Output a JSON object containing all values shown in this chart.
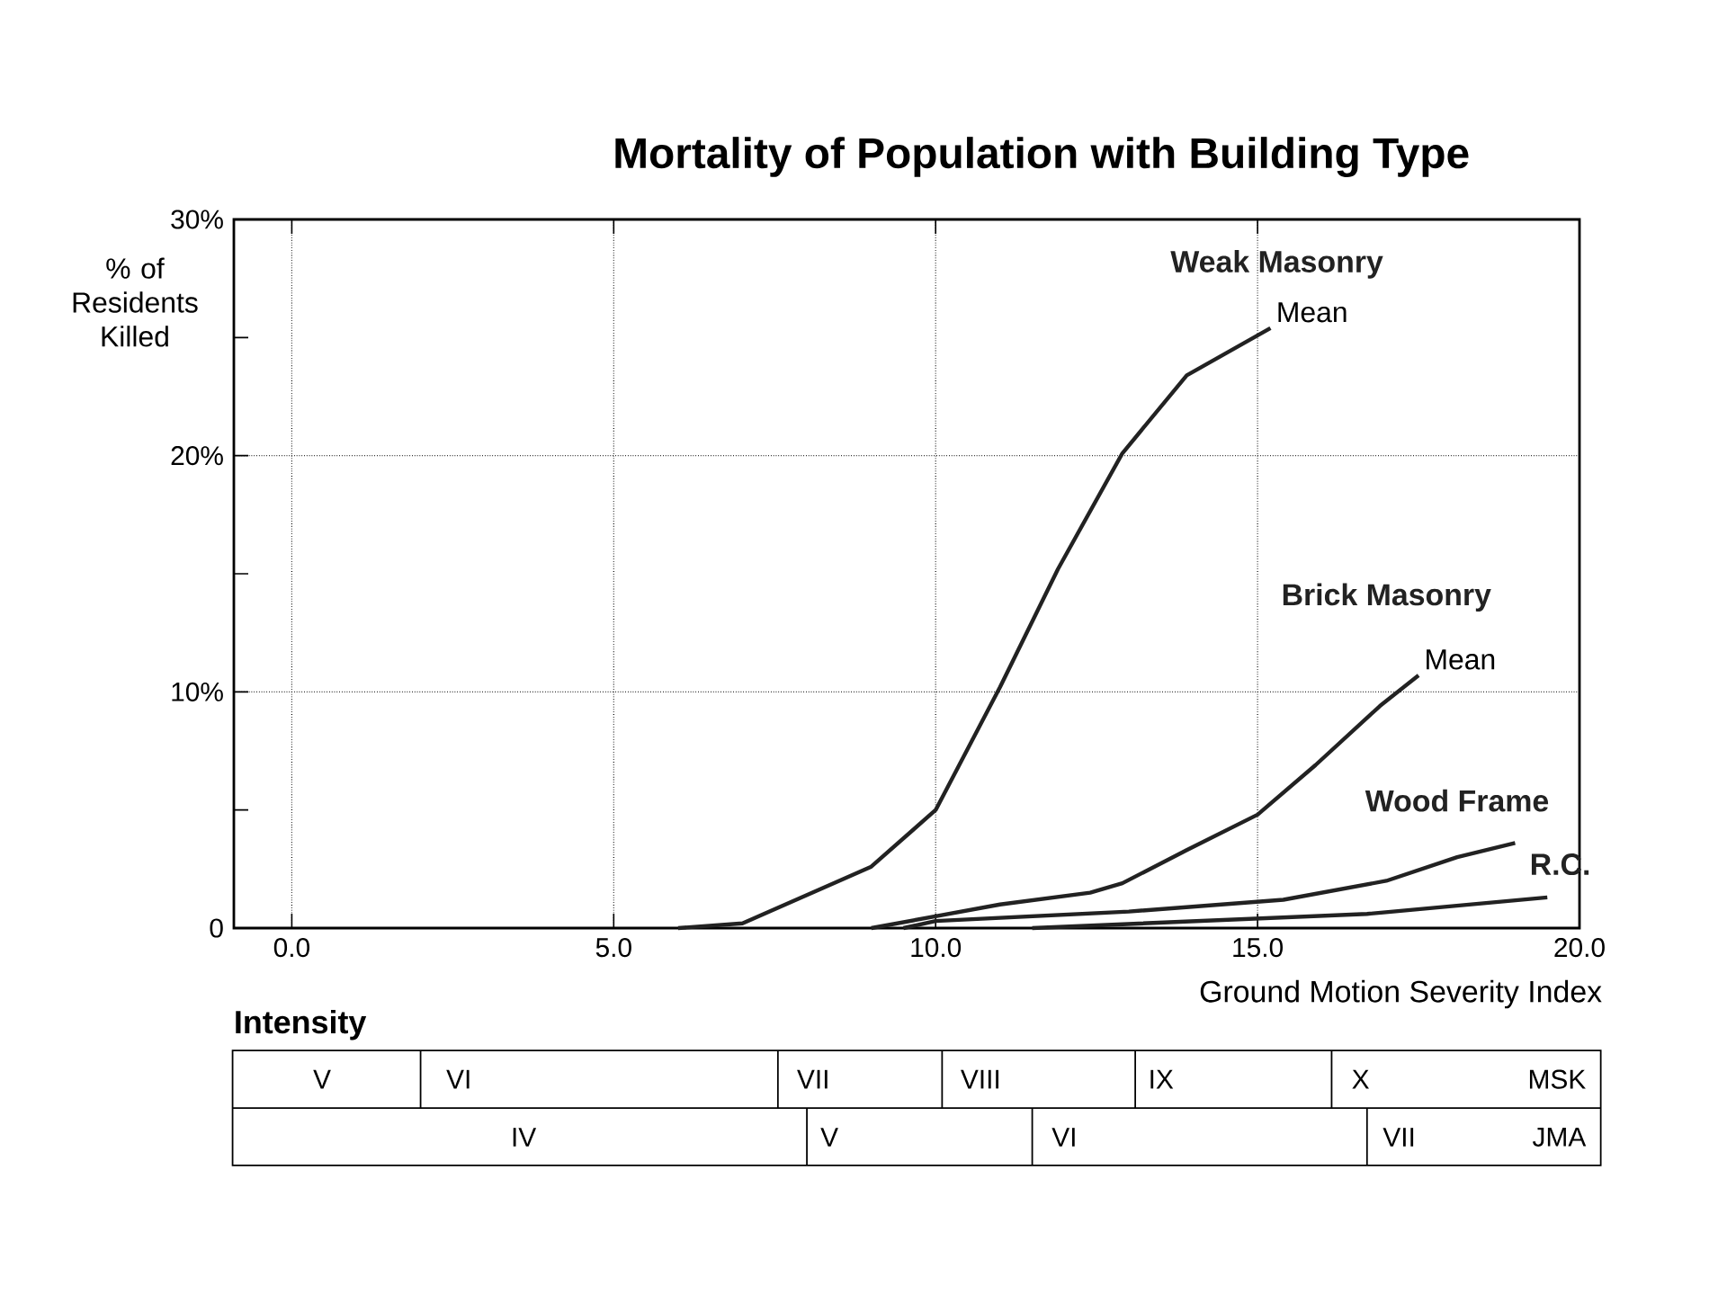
{
  "chart_data": {
    "type": "line",
    "title": "Mortality of Population with Building Type",
    "xlabel": "Ground Motion Severity Index",
    "ylabel": "% of Residents Killed",
    "xlim": [
      -0.9,
      20
    ],
    "ylim": [
      0,
      30
    ],
    "xticks": [
      {
        "value": 0,
        "label": "0.0"
      },
      {
        "value": 5,
        "label": "5.0"
      },
      {
        "value": 10,
        "label": "10.0"
      },
      {
        "value": 15,
        "label": "15.0"
      },
      {
        "value": 20,
        "label": "20.0"
      }
    ],
    "yticks": [
      {
        "value": 0,
        "label": "0"
      },
      {
        "value": 5,
        "label": null
      },
      {
        "value": 10,
        "label": "10%"
      },
      {
        "value": 15,
        "label": null
      },
      {
        "value": 20,
        "label": "20%"
      },
      {
        "value": 25,
        "label": null
      },
      {
        "value": 30,
        "label": "30%"
      }
    ],
    "grid": true,
    "marker": "none",
    "line_style": "solid",
    "series": [
      {
        "name": "Weak Masonry",
        "color": "#222222",
        "x": [
          6,
          7,
          8,
          9,
          10,
          11,
          11.9,
          12.9,
          13.9,
          15.2
        ],
        "values": [
          0,
          0.2,
          1.4,
          2.6,
          5,
          10.2,
          15.2,
          20.1,
          23.4,
          25.4
        ]
      },
      {
        "name": "Brick Masonry",
        "color": "#222222",
        "x": [
          9,
          10,
          11,
          12.4,
          12.9,
          13.9,
          15,
          15.9,
          16.9,
          17.5
        ],
        "values": [
          0,
          0.5,
          1,
          1.5,
          1.9,
          3.3,
          4.8,
          6.9,
          9.4,
          10.7
        ]
      },
      {
        "name": "Wood Frame",
        "color": "#222222",
        "x": [
          9.5,
          10,
          13,
          15.4,
          17,
          18.1,
          19
        ],
        "values": [
          0,
          0.3,
          0.7,
          1.2,
          2,
          3,
          3.6
        ]
      },
      {
        "name": "R.C.",
        "color": "#222222",
        "x": [
          11.5,
          16.7,
          19.5
        ],
        "values": [
          0,
          0.6,
          1.3
        ]
      }
    ],
    "annotations": [
      {
        "text": "Mean",
        "x": 15.2,
        "y": 25.4
      },
      {
        "text": "Mean",
        "x": 17.5,
        "y": 10.7
      },
      "Intensity",
      "V",
      "VI",
      "VII",
      "VIII",
      "IX",
      "X",
      "MSK",
      "IV",
      "V",
      "VI",
      "VII",
      "JMA"
    ]
  }
}
